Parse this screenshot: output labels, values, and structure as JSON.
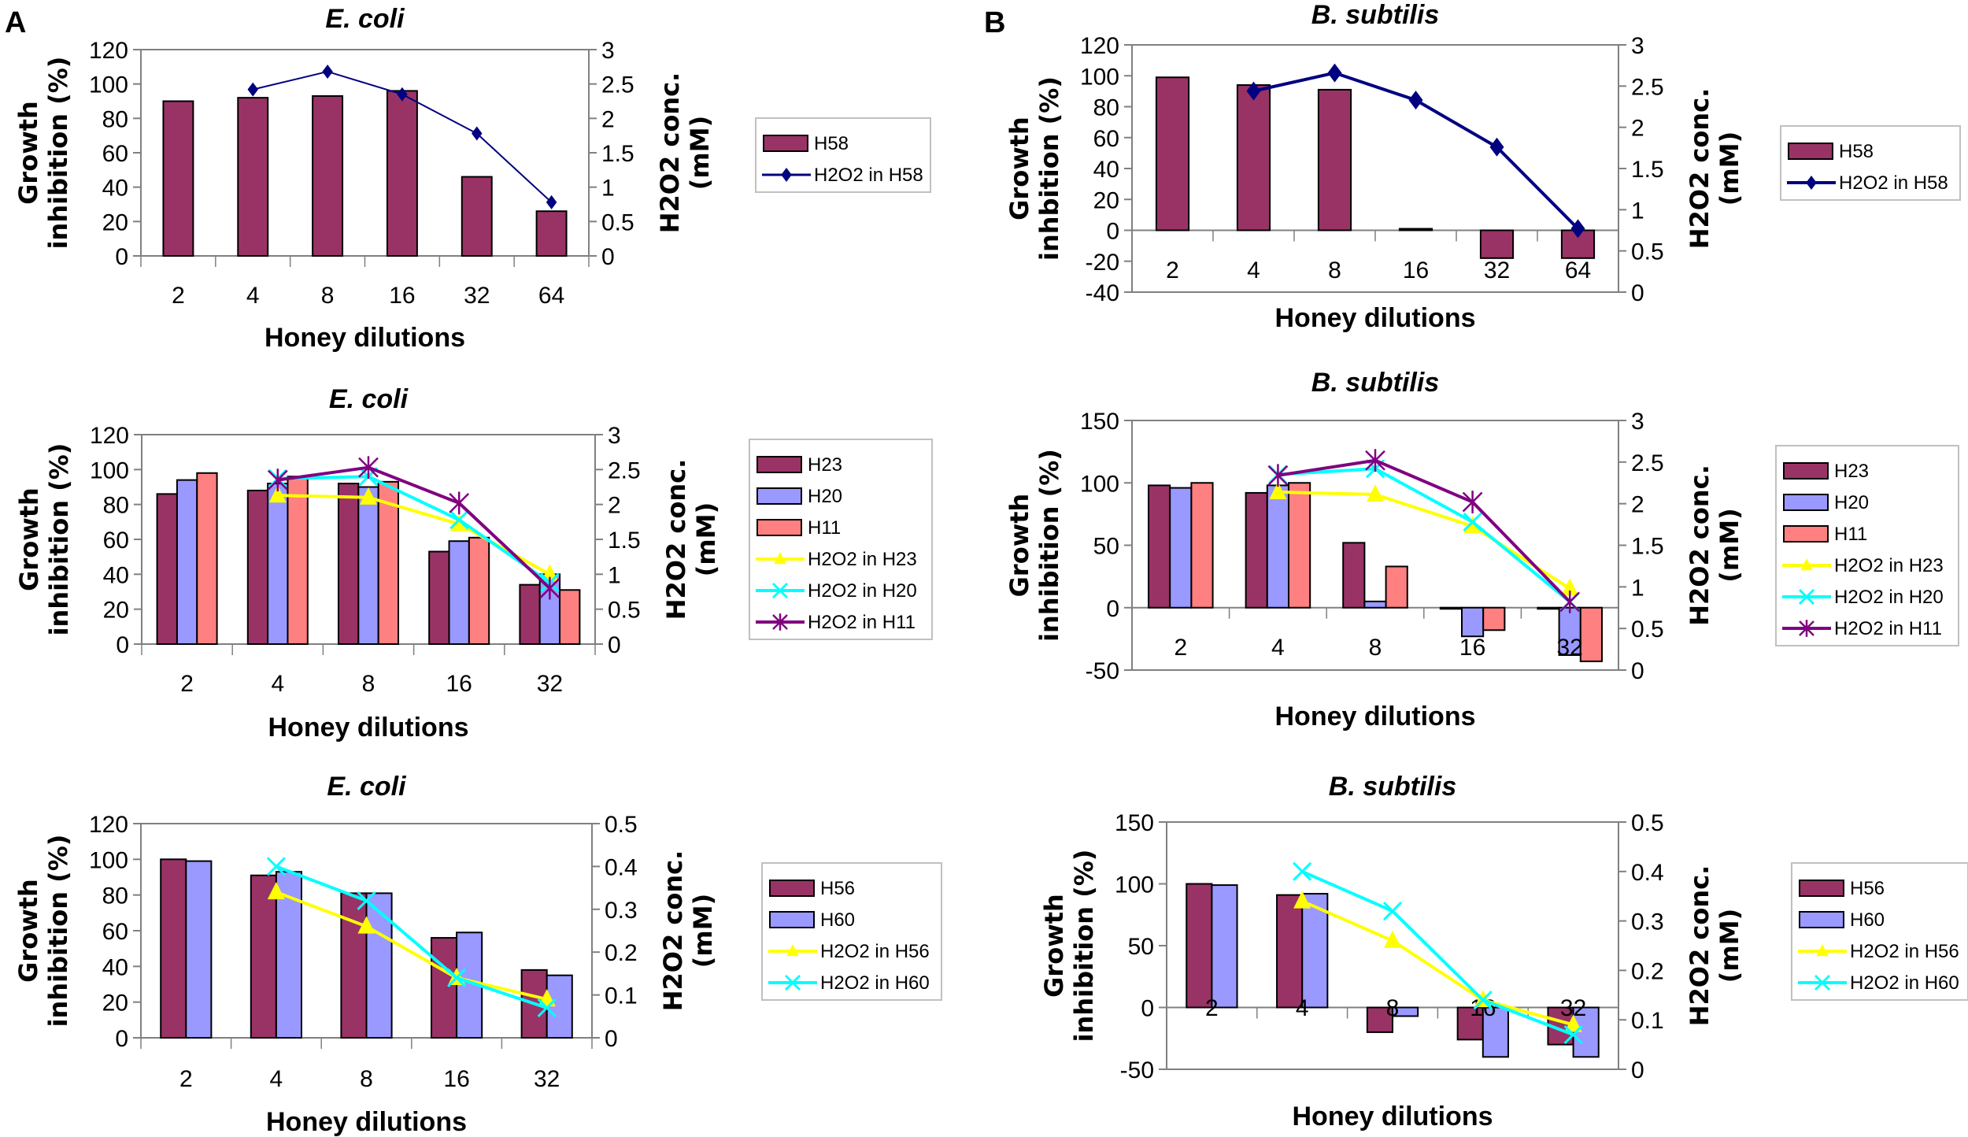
{
  "figure": {
    "panel_labels": [
      "A",
      "B"
    ]
  },
  "colors": {
    "H58": "#993366",
    "H23": "#993366",
    "H56": "#993366",
    "H20": "#9999ff",
    "H60": "#9999ff",
    "H11": "#ff8080",
    "line_H58": "#000080",
    "line_yellow": "#ffff00",
    "line_cyan": "#00ffff",
    "line_purple": "#800080",
    "axis": "#808080",
    "bar_edge": "#000000"
  },
  "chart_data": [
    {
      "id": "A1",
      "type": "bar",
      "title": "E. coli",
      "xlabel": "Honey dilutions",
      "ylabel": [
        "Growth",
        "inhibition (%)"
      ],
      "y2label": [
        "H2O2 conc.",
        "(mM)"
      ],
      "categories": [
        "2",
        "4",
        "8",
        "16",
        "32",
        "64"
      ],
      "ylim": [
        0,
        120
      ],
      "yticks": [
        0,
        20,
        40,
        60,
        80,
        100,
        120
      ],
      "y2lim": [
        0,
        3
      ],
      "y2ticks": [
        "0",
        "0.5",
        "1",
        "1.5",
        "2",
        "2.5",
        "3"
      ],
      "y2tick_values": [
        0,
        0.5,
        1,
        1.5,
        2,
        2.5,
        3
      ],
      "series": [
        {
          "name": "H58",
          "kind": "bar",
          "color": "#993366",
          "values": [
            90,
            92,
            93,
            96,
            46,
            26
          ]
        }
      ],
      "lines": [
        {
          "name": "H2O2 in H58",
          "marker": "diamond",
          "color": "#000080",
          "values": [
            null,
            2.42,
            2.68,
            2.35,
            1.78,
            0.78
          ],
          "width": 2,
          "msize": 9
        }
      ],
      "legend": "right"
    },
    {
      "id": "A2",
      "type": "bar",
      "title": "E. coli",
      "xlabel": "Honey dilutions",
      "ylabel": [
        "Growth",
        "inhibition (%)"
      ],
      "y2label": [
        "H2O2 conc.",
        "(mM)"
      ],
      "categories": [
        "2",
        "4",
        "8",
        "16",
        "32"
      ],
      "ylim": [
        0,
        120
      ],
      "yticks": [
        0,
        20,
        40,
        60,
        80,
        100,
        120
      ],
      "y2lim": [
        0,
        3
      ],
      "y2ticks": [
        "0",
        "0.5",
        "1",
        "1.5",
        "2",
        "2.5",
        "3"
      ],
      "y2tick_values": [
        0,
        0.5,
        1,
        1.5,
        2,
        2.5,
        3
      ],
      "series": [
        {
          "name": "H23",
          "kind": "bar",
          "color": "#993366",
          "values": [
            86,
            88,
            92,
            53,
            34
          ]
        },
        {
          "name": "H20",
          "kind": "bar",
          "color": "#9999ff",
          "values": [
            94,
            92,
            90,
            59,
            40
          ]
        },
        {
          "name": "H11",
          "kind": "bar",
          "color": "#ff8080",
          "values": [
            98,
            96,
            93,
            61,
            31
          ]
        }
      ],
      "lines": [
        {
          "name": "H2O2 in H23",
          "marker": "triangle",
          "color": "#ffff00",
          "values": [
            null,
            2.13,
            2.1,
            1.72,
            1.0
          ],
          "width": 4,
          "msize": 13
        },
        {
          "name": "H2O2 in H20",
          "marker": "x",
          "color": "#00ffff",
          "values": [
            null,
            2.37,
            2.4,
            1.78,
            0.88
          ],
          "width": 4,
          "msize": 11
        },
        {
          "name": "H2O2 in H11",
          "marker": "star",
          "color": "#800080",
          "values": [
            null,
            2.35,
            2.53,
            2.02,
            0.8
          ],
          "width": 4,
          "msize": 12
        }
      ],
      "legend": "right"
    },
    {
      "id": "A3",
      "type": "bar",
      "title": "E. coli",
      "xlabel": "Honey dilutions",
      "ylabel": [
        "Growth",
        "inhibition (%)"
      ],
      "y2label": [
        "H2O2 conc.",
        "(mM)"
      ],
      "categories": [
        "2",
        "4",
        "8",
        "16",
        "32"
      ],
      "ylim": [
        0,
        120
      ],
      "yticks": [
        0,
        20,
        40,
        60,
        80,
        100,
        120
      ],
      "y2lim": [
        0,
        0.5
      ],
      "y2ticks": [
        "0",
        "0.1",
        "0.2",
        "0.3",
        "0.4",
        "0.5"
      ],
      "y2tick_values": [
        0,
        0.1,
        0.2,
        0.3,
        0.4,
        0.5
      ],
      "series": [
        {
          "name": "H56",
          "kind": "bar",
          "color": "#993366",
          "values": [
            100,
            91,
            81,
            56,
            38
          ]
        },
        {
          "name": "H60",
          "kind": "bar",
          "color": "#9999ff",
          "values": [
            99,
            93,
            81,
            59,
            35
          ]
        }
      ],
      "lines": [
        {
          "name": "H2O2 in H56",
          "marker": "triangle",
          "color": "#ffff00",
          "values": [
            null,
            0.34,
            0.26,
            0.14,
            0.09
          ],
          "width": 4,
          "msize": 13
        },
        {
          "name": "H2O2 in H60",
          "marker": "x",
          "color": "#00ffff",
          "values": [
            null,
            0.4,
            0.32,
            0.14,
            0.07
          ],
          "width": 4,
          "msize": 11
        }
      ],
      "legend": "right"
    },
    {
      "id": "B1",
      "type": "bar",
      "title": "B. subtilis",
      "xlabel": "Honey dilutions",
      "ylabel": [
        "Growth",
        "inhbition (%)"
      ],
      "y2label": [
        "H2O2 conc.",
        "(mM)"
      ],
      "categories": [
        "2",
        "4",
        "8",
        "16",
        "32",
        "64"
      ],
      "ylim": [
        -40,
        120
      ],
      "yticks": [
        -40,
        -20,
        0,
        20,
        40,
        60,
        80,
        100,
        120
      ],
      "y2lim": [
        0,
        3
      ],
      "y2ticks": [
        "0",
        "0.5",
        "1",
        "1.5",
        "2",
        "2.5",
        "3"
      ],
      "y2tick_values": [
        0,
        0.5,
        1,
        1.5,
        2,
        2.5,
        3
      ],
      "series": [
        {
          "name": "H58",
          "kind": "bar",
          "color": "#993366",
          "values": [
            99,
            94,
            91,
            1,
            -18,
            -18
          ]
        }
      ],
      "lines": [
        {
          "name": "H2O2 in H58",
          "marker": "diamond",
          "color": "#000080",
          "values": [
            null,
            2.44,
            2.66,
            2.33,
            1.76,
            0.77
          ],
          "width": 4,
          "msize": 12
        }
      ],
      "legend": "right"
    },
    {
      "id": "B2",
      "type": "bar",
      "title": "B. subtilis",
      "xlabel": "Honey dilutions",
      "ylabel": [
        "Growth",
        "inhibition (%)"
      ],
      "y2label": [
        "H2O2 conc.",
        "(mM)"
      ],
      "categories": [
        "2",
        "4",
        "8",
        "16",
        "32"
      ],
      "ylim": [
        -50,
        150
      ],
      "yticks": [
        -50,
        0,
        50,
        100,
        150
      ],
      "y2lim": [
        0,
        3
      ],
      "y2ticks": [
        "0",
        "0.5",
        "1",
        "1.5",
        "2",
        "2.5",
        "3"
      ],
      "y2tick_values": [
        0,
        0.5,
        1,
        1.5,
        2,
        2.5,
        3
      ],
      "series": [
        {
          "name": "H23",
          "kind": "bar",
          "color": "#993366",
          "values": [
            98,
            92,
            52,
            0,
            0
          ]
        },
        {
          "name": "H20",
          "kind": "bar",
          "color": "#9999ff",
          "values": [
            96,
            98,
            5,
            -23,
            -38
          ]
        },
        {
          "name": "H11",
          "kind": "bar",
          "color": "#ff8080",
          "values": [
            100,
            100,
            33,
            -18,
            -43
          ]
        }
      ],
      "lines": [
        {
          "name": "H2O2 in H23",
          "marker": "triangle",
          "color": "#ffff00",
          "values": [
            null,
            2.14,
            2.11,
            1.73,
            0.98
          ],
          "width": 4,
          "msize": 13
        },
        {
          "name": "H2O2 in H20",
          "marker": "x",
          "color": "#00ffff",
          "values": [
            null,
            2.35,
            2.42,
            1.78,
            0.82
          ],
          "width": 4,
          "msize": 11
        },
        {
          "name": "H2O2 in H11",
          "marker": "star",
          "color": "#800080",
          "values": [
            null,
            2.34,
            2.52,
            2.02,
            0.82
          ],
          "width": 4,
          "msize": 12
        }
      ],
      "legend": "right"
    },
    {
      "id": "B3",
      "type": "bar",
      "title": "B. subtilis",
      "xlabel": "Honey dilutions",
      "ylabel": [
        "Growth",
        "inhibition (%)"
      ],
      "y2label": [
        "H2O2 conc.",
        "(mM)"
      ],
      "categories": [
        "2",
        "4",
        "8",
        "16",
        "32"
      ],
      "ylim": [
        -50,
        150
      ],
      "yticks": [
        -50,
        0,
        50,
        100,
        150
      ],
      "y2lim": [
        0,
        0.5
      ],
      "y2ticks": [
        "0",
        "0.1",
        "0.2",
        "0.3",
        "0.4",
        "0.5"
      ],
      "y2tick_values": [
        0,
        0.1,
        0.2,
        0.3,
        0.4,
        0.5
      ],
      "series": [
        {
          "name": "H56",
          "kind": "bar",
          "color": "#993366",
          "values": [
            100,
            91,
            -20,
            -26,
            -30
          ]
        },
        {
          "name": "H60",
          "kind": "bar",
          "color": "#9999ff",
          "values": [
            99,
            92,
            -7,
            -40,
            -40
          ]
        }
      ],
      "lines": [
        {
          "name": "H2O2 in H56",
          "marker": "triangle",
          "color": "#ffff00",
          "values": [
            null,
            0.34,
            0.26,
            0.14,
            0.09
          ],
          "width": 4,
          "msize": 13
        },
        {
          "name": "H2O2 in H60",
          "marker": "x",
          "color": "#00ffff",
          "values": [
            null,
            0.4,
            0.32,
            0.14,
            0.07
          ],
          "width": 4,
          "msize": 11
        }
      ],
      "legend": "right"
    }
  ]
}
